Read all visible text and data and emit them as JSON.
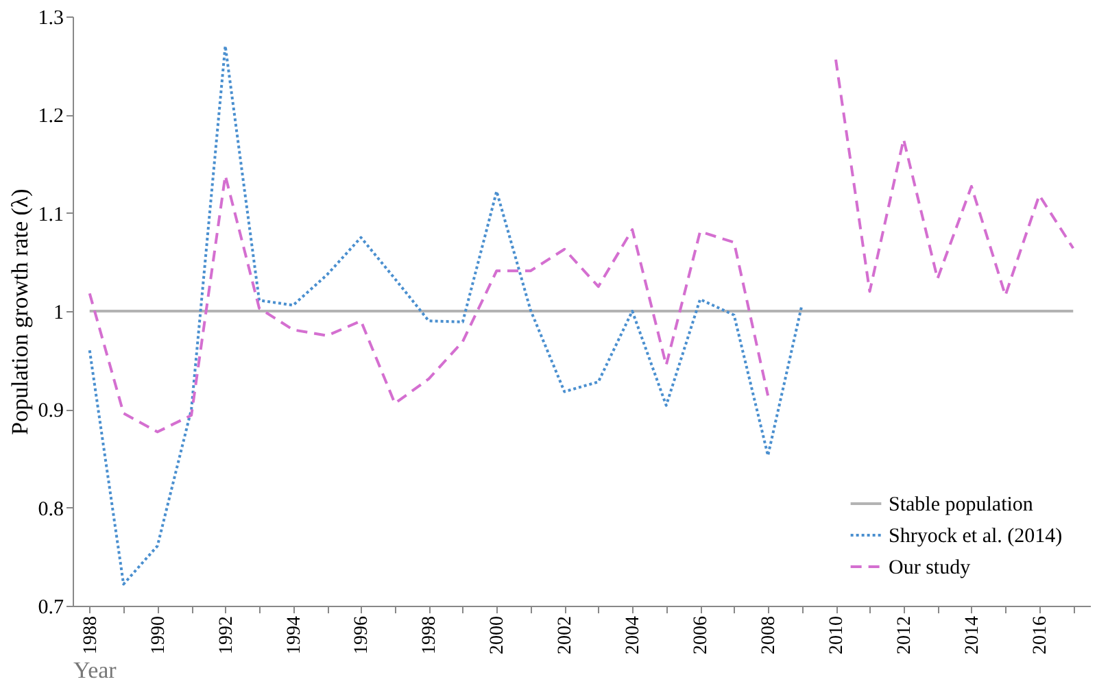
{
  "chart_data": {
    "type": "line",
    "xlabel": "Year",
    "ylabel": "Population growth rate (λ)",
    "x": [
      1988,
      1989,
      1990,
      1991,
      1992,
      1993,
      1994,
      1995,
      1996,
      1997,
      1998,
      1999,
      2000,
      2001,
      2002,
      2003,
      2004,
      2005,
      2006,
      2007,
      2008,
      2009,
      2010,
      2011,
      2012,
      2013,
      2014,
      2015,
      2016,
      2017
    ],
    "series": [
      {
        "name": "Stable population",
        "color": "#b3b3b3",
        "line_style": "solid",
        "values": [
          1,
          1,
          1,
          1,
          1,
          1,
          1,
          1,
          1,
          1,
          1,
          1,
          1,
          1,
          1,
          1,
          1,
          1,
          1,
          1,
          1,
          1,
          1,
          1,
          1,
          1,
          1,
          1,
          1,
          1
        ]
      },
      {
        "name": "Shryock et al. (2014)",
        "color": "#4a8fcf",
        "line_style": "dotted",
        "values": [
          0.96,
          0.722,
          0.761,
          0.9,
          1.27,
          1.011,
          1.006,
          1.037,
          1.075,
          1.033,
          0.99,
          0.989,
          1.122,
          1.001,
          0.918,
          0.928,
          1.0,
          0.904,
          1.012,
          0.996,
          0.853,
          1.006,
          null,
          null,
          null,
          null,
          null,
          null,
          null,
          null
        ]
      },
      {
        "name": "Our study",
        "color": "#d46fd0",
        "line_style": "dashed",
        "values": [
          1.018,
          0.896,
          0.877,
          0.894,
          1.138,
          1.003,
          0.981,
          0.975,
          0.99,
          0.906,
          0.931,
          0.969,
          1.041,
          1.041,
          1.063,
          1.025,
          1.083,
          0.945,
          1.081,
          1.07,
          0.914,
          null,
          1.256,
          1.02,
          1.175,
          1.033,
          1.127,
          1.016,
          1.118,
          1.064
        ]
      }
    ],
    "xlim": [
      1987.5,
      2017.5
    ],
    "xticks": [
      1988,
      {
        "value": 1989,
        "label": null
      },
      1990,
      {
        "value": 1991,
        "label": null
      },
      1992,
      {
        "value": 1993,
        "label": null
      },
      1994,
      {
        "value": 1995,
        "label": null
      },
      1996,
      {
        "value": 1997,
        "label": null
      },
      1998,
      {
        "value": 1999,
        "label": null
      },
      2000,
      {
        "value": 2001,
        "label": null
      },
      2002,
      {
        "value": 2003,
        "label": null
      },
      2004,
      {
        "value": 2005,
        "label": null
      },
      2006,
      {
        "value": 2007,
        "label": null
      },
      2008,
      {
        "value": 2009,
        "label": null
      },
      2010,
      {
        "value": 2011,
        "label": null
      },
      2012,
      {
        "value": 2013,
        "label": null
      },
      2014,
      {
        "value": 2015,
        "label": null
      },
      2016,
      {
        "value": 2017,
        "label": null
      }
    ],
    "ylim": [
      0.7,
      1.3
    ],
    "yticks": [
      0.7,
      0.8,
      0.9,
      1,
      1.1,
      1.2,
      1.3
    ],
    "grid": false,
    "legend": "bottom right"
  }
}
